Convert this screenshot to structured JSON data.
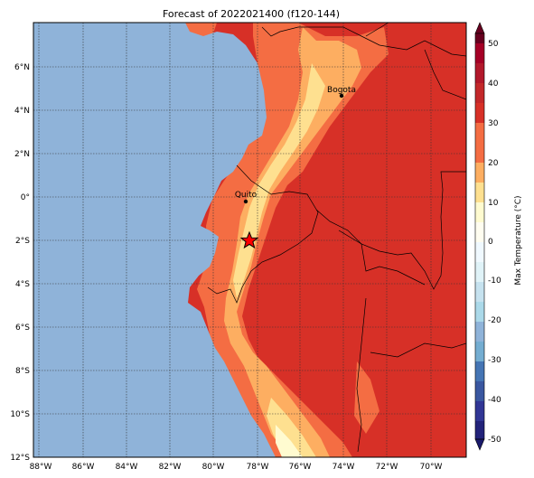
{
  "title": "Forecast of 2022021400 (f120-144)",
  "colorbar": {
    "label": "Max Temperature (°C)",
    "ticks": [
      50,
      40,
      30,
      20,
      10,
      0,
      -10,
      -20,
      -30,
      -40,
      -50
    ]
  },
  "lon_labels": [
    "88°W",
    "86°W",
    "84°W",
    "82°W",
    "80°W",
    "78°W",
    "76°W",
    "74°W",
    "72°W",
    "70°W"
  ],
  "lat_labels": [
    "6°N",
    "4°N",
    "2°N",
    "0°",
    "2°S",
    "4°S",
    "6°S",
    "8°S",
    "10°S",
    "12°S"
  ],
  "cities": [
    {
      "name": "Bogota"
    },
    {
      "name": "Quito"
    }
  ],
  "marker": {
    "icon": "star-marker",
    "color": "#ff0000"
  },
  "colors": {
    "ocean": "#8fb3d9",
    "t20_25": "#fdae61",
    "t25_30": "#f46d43",
    "t30_35": "#d73027",
    "t15_20": "#fee090",
    "t10_15": "#fffbd0"
  }
}
